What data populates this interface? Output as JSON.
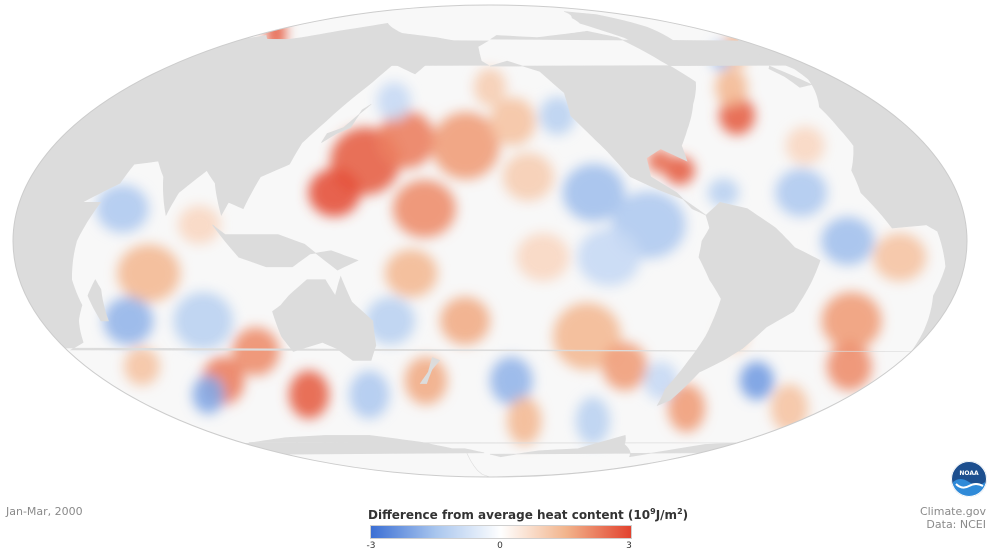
{
  "map": {
    "projection": "mollweide",
    "ocean_background": "#f8f8f8",
    "land_color": "#dcdcdc",
    "outline_color": "#cccccc"
  },
  "caption": {
    "period": "Jan-Mar, 2000"
  },
  "legend": {
    "title_text": "Difference from average heat content (10",
    "title_exp": "9",
    "title_unit": "J/m",
    "title_unit_exp": "2",
    "title_close": ")",
    "min_label": "-3",
    "mid_label": "0",
    "max_label": "3",
    "colors": [
      "#3b6fd4",
      "#a9c6ee",
      "#ffffff",
      "#f2b48c",
      "#e2422e"
    ]
  },
  "credits": {
    "line1": "Climate.gov",
    "line2": "Data: NCEI"
  },
  "logo": {
    "text": "NOAA"
  },
  "anomaly_patches": [
    {
      "lon": 150,
      "lat": 25,
      "r": 14,
      "v": 2.6
    },
    {
      "lon": 165,
      "lat": 32,
      "r": 12,
      "v": 2.2
    },
    {
      "lon": 140,
      "lat": 15,
      "r": 10,
      "v": 2.8
    },
    {
      "lon": 175,
      "lat": 10,
      "r": 12,
      "v": 2.0
    },
    {
      "lon": -170,
      "lat": 30,
      "r": 14,
      "v": 1.8
    },
    {
      "lon": -150,
      "lat": 38,
      "r": 10,
      "v": 1.2
    },
    {
      "lon": -145,
      "lat": 20,
      "r": 10,
      "v": 1.0
    },
    {
      "lon": -130,
      "lat": 40,
      "r": 8,
      "v": -1.2
    },
    {
      "lon": -120,
      "lat": 15,
      "r": 12,
      "v": -1.6
    },
    {
      "lon": -100,
      "lat": 5,
      "r": 14,
      "v": -1.4
    },
    {
      "lon": -115,
      "lat": -5,
      "r": 12,
      "v": -1.0
    },
    {
      "lon": -140,
      "lat": -5,
      "r": 10,
      "v": 0.8
    },
    {
      "lon": 170,
      "lat": -10,
      "r": 10,
      "v": 1.4
    },
    {
      "lon": 160,
      "lat": -25,
      "r": 10,
      "v": -1.2
    },
    {
      "lon": -170,
      "lat": -25,
      "r": 10,
      "v": 1.6
    },
    {
      "lon": -120,
      "lat": -30,
      "r": 14,
      "v": 1.4
    },
    {
      "lon": -100,
      "lat": -40,
      "r": 10,
      "v": 1.8
    },
    {
      "lon": -150,
      "lat": -45,
      "r": 10,
      "v": -1.8
    },
    {
      "lon": -80,
      "lat": -45,
      "r": 8,
      "v": -1.0
    },
    {
      "lon": -85,
      "lat": 22,
      "r": 6,
      "v": 2.6
    },
    {
      "lon": -92,
      "lat": 25,
      "r": 5,
      "v": 2.4
    },
    {
      "lon": -70,
      "lat": 15,
      "r": 6,
      "v": -1.2
    },
    {
      "lon": -50,
      "lat": 40,
      "r": 8,
      "v": 2.6
    },
    {
      "lon": -40,
      "lat": 50,
      "r": 8,
      "v": 1.4
    },
    {
      "lon": -30,
      "lat": 30,
      "r": 8,
      "v": 0.8
    },
    {
      "lon": -40,
      "lat": 15,
      "r": 10,
      "v": -1.4
    },
    {
      "lon": -25,
      "lat": 0,
      "r": 10,
      "v": -1.6
    },
    {
      "lon": -5,
      "lat": -5,
      "r": 10,
      "v": 1.2
    },
    {
      "lon": -15,
      "lat": -25,
      "r": 12,
      "v": 1.8
    },
    {
      "lon": 0,
      "lat": -40,
      "r": 10,
      "v": 2.0
    },
    {
      "lon": -35,
      "lat": -45,
      "r": 8,
      "v": -2.2
    },
    {
      "lon": -55,
      "lat": -55,
      "r": 10,
      "v": 1.8
    },
    {
      "lon": 0,
      "lat": -55,
      "r": 10,
      "v": 1.2
    },
    {
      "lon": 30,
      "lat": 72,
      "r": 8,
      "v": 2.6
    },
    {
      "lon": 0,
      "lat": 65,
      "r": 8,
      "v": 1.4
    },
    {
      "lon": -20,
      "lat": 62,
      "r": 6,
      "v": -1.6
    },
    {
      "lon": 60,
      "lat": 10,
      "r": 10,
      "v": -1.4
    },
    {
      "lon": 70,
      "lat": -10,
      "r": 12,
      "v": 1.4
    },
    {
      "lon": 55,
      "lat": -25,
      "r": 10,
      "v": -1.8
    },
    {
      "lon": 85,
      "lat": -25,
      "r": 12,
      "v": -1.2
    },
    {
      "lon": 100,
      "lat": -35,
      "r": 10,
      "v": 2.0
    },
    {
      "lon": 75,
      "lat": -45,
      "r": 10,
      "v": 2.2
    },
    {
      "lon": 110,
      "lat": -50,
      "r": 10,
      "v": 2.6
    },
    {
      "lon": 60,
      "lat": -50,
      "r": 8,
      "v": -2.0
    },
    {
      "lon": 140,
      "lat": -50,
      "r": 10,
      "v": -1.4
    },
    {
      "lon": 170,
      "lat": -45,
      "r": 10,
      "v": 1.6
    },
    {
      "lon": 90,
      "lat": 5,
      "r": 8,
      "v": 0.8
    },
    {
      "lon": 45,
      "lat": -40,
      "r": 8,
      "v": 1.2
    },
    {
      "lon": -160,
      "lat": 50,
      "r": 8,
      "v": 1.0
    },
    {
      "lon": 155,
      "lat": 45,
      "r": 8,
      "v": -1.0
    },
    {
      "lon": -60,
      "lat": -30,
      "r": 6,
      "v": 1.2
    },
    {
      "lon": -140,
      "lat": -60,
      "r": 10,
      "v": 1.4
    },
    {
      "lon": -100,
      "lat": -60,
      "r": 10,
      "v": -1.2
    }
  ],
  "land_polygons": [
    {
      "name": "north-america",
      "pts": [
        [
          -168,
          66
        ],
        [
          -155,
          71
        ],
        [
          -125,
          70
        ],
        [
          -95,
          72
        ],
        [
          -80,
          73
        ],
        [
          -65,
          70
        ],
        [
          -60,
          60
        ],
        [
          -55,
          52
        ],
        [
          -66,
          44
        ],
        [
          -76,
          35
        ],
        [
          -81,
          30
        ],
        [
          -81,
          25
        ],
        [
          -90,
          29
        ],
        [
          -97,
          26
        ],
        [
          -97,
          20
        ],
        [
          -88,
          15
        ],
        [
          -83,
          10
        ],
        [
          -78,
          8
        ],
        [
          -86,
          13
        ],
        [
          -95,
          16
        ],
        [
          -105,
          20
        ],
        [
          -112,
          28
        ],
        [
          -117,
          33
        ],
        [
          -124,
          40
        ],
        [
          -124,
          48
        ],
        [
          -133,
          56
        ],
        [
          -150,
          60
        ],
        [
          -160,
          58
        ],
        [
          -165,
          60
        ]
      ]
    },
    {
      "name": "greenland",
      "pts": [
        [
          -55,
          60
        ],
        [
          -45,
          60
        ],
        [
          -30,
          68
        ],
        [
          -20,
          75
        ],
        [
          -18,
          82
        ],
        [
          -40,
          84
        ],
        [
          -65,
          80
        ],
        [
          -72,
          77
        ],
        [
          -60,
          70
        ]
      ]
    },
    {
      "name": "south-america",
      "pts": [
        [
          -78,
          8
        ],
        [
          -72,
          12
        ],
        [
          -62,
          10
        ],
        [
          -52,
          4
        ],
        [
          -45,
          -2
        ],
        [
          -35,
          -6
        ],
        [
          -37,
          -13
        ],
        [
          -40,
          -22
        ],
        [
          -48,
          -27
        ],
        [
          -53,
          -34
        ],
        [
          -58,
          -38
        ],
        [
          -65,
          -42
        ],
        [
          -68,
          -52
        ],
        [
          -72,
          -54
        ],
        [
          -75,
          -48
        ],
        [
          -73,
          -38
        ],
        [
          -71,
          -30
        ],
        [
          -70,
          -18
        ],
        [
          -76,
          -12
        ],
        [
          -81,
          -5
        ],
        [
          -80,
          0
        ],
        [
          -77,
          4
        ]
      ]
    },
    {
      "name": "eurasia-africa",
      "pts": [
        [
          -10,
          36
        ],
        [
          -9,
          43
        ],
        [
          -2,
          48
        ],
        [
          5,
          53
        ],
        [
          8,
          57
        ],
        [
          5,
          62
        ],
        [
          15,
          68
        ],
        [
          28,
          71
        ],
        [
          45,
          68
        ],
        [
          60,
          70
        ],
        [
          75,
          73
        ],
        [
          100,
          77
        ],
        [
          130,
          72
        ],
        [
          160,
          70
        ],
        [
          180,
          68
        ],
        [
          180,
          65
        ],
        [
          165,
          60
        ],
        [
          160,
          55
        ],
        [
          145,
          59
        ],
        [
          140,
          52
        ],
        [
          132,
          43
        ],
        [
          128,
          38
        ],
        [
          122,
          31
        ],
        [
          120,
          24
        ],
        [
          110,
          20
        ],
        [
          106,
          10
        ],
        [
          100,
          12
        ],
        [
          98,
          8
        ],
        [
          93,
          18
        ],
        [
          88,
          22
        ],
        [
          80,
          15
        ],
        [
          77,
          8
        ],
        [
          72,
          20
        ],
        [
          67,
          25
        ],
        [
          58,
          24
        ],
        [
          56,
          18
        ],
        [
          52,
          16
        ],
        [
          44,
          12
        ],
        [
          51,
          12
        ],
        [
          44,
          0
        ],
        [
          40,
          -12
        ],
        [
          40,
          -20
        ],
        [
          35,
          -25
        ],
        [
          30,
          -32
        ],
        [
          20,
          -35
        ],
        [
          17,
          -28
        ],
        [
          12,
          -17
        ],
        [
          13,
          -8
        ],
        [
          9,
          3
        ],
        [
          5,
          5
        ],
        [
          -8,
          4
        ],
        [
          -17,
          15
        ],
        [
          -17,
          22
        ],
        [
          -10,
          30
        ]
      ]
    },
    {
      "name": "australia",
      "pts": [
        [
          114,
          -22
        ],
        [
          118,
          -20
        ],
        [
          122,
          -17
        ],
        [
          130,
          -12
        ],
        [
          137,
          -12
        ],
        [
          140,
          -17
        ],
        [
          143,
          -11
        ],
        [
          146,
          -19
        ],
        [
          153,
          -25
        ],
        [
          152,
          -33
        ],
        [
          148,
          -38
        ],
        [
          140,
          -38
        ],
        [
          135,
          -34
        ],
        [
          130,
          -32
        ],
        [
          116,
          -35
        ],
        [
          114,
          -30
        ]
      ]
    },
    {
      "name": "antarctica",
      "pts": [
        [
          -180,
          -72
        ],
        [
          -150,
          -76
        ],
        [
          -120,
          -73
        ],
        [
          -90,
          -72
        ],
        [
          -70,
          -66
        ],
        [
          -60,
          -70
        ],
        [
          -30,
          -76
        ],
        [
          0,
          -70
        ],
        [
          30,
          -69
        ],
        [
          60,
          -67
        ],
        [
          90,
          -66
        ],
        [
          120,
          -66
        ],
        [
          150,
          -69
        ],
        [
          170,
          -72
        ],
        [
          180,
          -72
        ],
        [
          180,
          -90
        ],
        [
          -180,
          -90
        ]
      ]
    },
    {
      "name": "indonesia",
      "pts": [
        [
          95,
          5
        ],
        [
          105,
          -5
        ],
        [
          115,
          -8
        ],
        [
          125,
          -8
        ],
        [
          132,
          -4
        ],
        [
          140,
          -3
        ],
        [
          150,
          -6
        ],
        [
          142,
          -9
        ],
        [
          130,
          -1
        ],
        [
          120,
          2
        ],
        [
          110,
          2
        ],
        [
          100,
          2
        ]
      ]
    },
    {
      "name": "madagascar",
      "pts": [
        [
          44,
          -25
        ],
        [
          47,
          -25
        ],
        [
          50,
          -15
        ],
        [
          49,
          -12
        ],
        [
          44,
          -17
        ]
      ]
    },
    {
      "name": "japan",
      "pts": [
        [
          130,
          31
        ],
        [
          135,
          34
        ],
        [
          140,
          36
        ],
        [
          142,
          42
        ],
        [
          145,
          44
        ],
        [
          141,
          40
        ],
        [
          137,
          36
        ],
        [
          131,
          34
        ]
      ]
    },
    {
      "name": "uk",
      "pts": [
        [
          -6,
          50
        ],
        [
          2,
          51
        ],
        [
          0,
          54
        ],
        [
          -3,
          58
        ],
        [
          -6,
          57
        ],
        [
          -5,
          54
        ]
      ]
    },
    {
      "name": "new-zealand",
      "pts": [
        [
          167,
          -46
        ],
        [
          172,
          -42
        ],
        [
          175,
          -37
        ],
        [
          178,
          -38
        ],
        [
          174,
          -41
        ],
        [
          170,
          -46
        ]
      ]
    },
    {
      "name": "iceland",
      "pts": [
        [
          -24,
          64
        ],
        [
          -14,
          64
        ],
        [
          -14,
          66
        ],
        [
          -22,
          66
        ]
      ]
    }
  ]
}
